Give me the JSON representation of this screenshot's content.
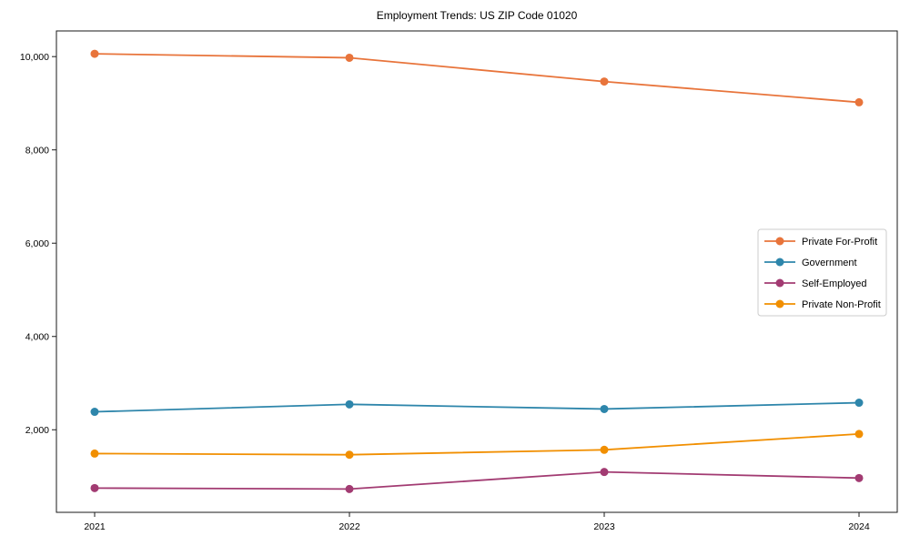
{
  "chart_data": {
    "type": "line",
    "title": "Employment Trends: US ZIP Code 01020",
    "xlabel": "",
    "ylabel": "",
    "x": [
      2021,
      2022,
      2023,
      2024
    ],
    "x_tick_labels": [
      "2021",
      "2022",
      "2023",
      "2024"
    ],
    "series": [
      {
        "name": "Private For-Profit",
        "color": "#E8743B",
        "values": [
          10060,
          9975,
          9465,
          9020
        ]
      },
      {
        "name": "Government",
        "color": "#2E86AB",
        "values": [
          2385,
          2545,
          2445,
          2580
        ]
      },
      {
        "name": "Self-Employed",
        "color": "#A23B72",
        "values": [
          750,
          730,
          1095,
          965
        ]
      },
      {
        "name": "Private Non-Profit",
        "color": "#F18F01",
        "values": [
          1490,
          1465,
          1570,
          1910
        ]
      }
    ],
    "yticks": [
      2000,
      4000,
      6000,
      8000,
      10000
    ],
    "ytick_labels": [
      "2,000",
      "4,000",
      "6,000",
      "8,000",
      "10,000"
    ],
    "xlim": [
      2020.85,
      2024.15
    ],
    "ylim": [
      230,
      10550
    ],
    "grid": false,
    "legend_position": "center-right",
    "marker": "circle",
    "background_color": "#ffffff",
    "spine_color": "#1a1a1a",
    "legend_border_color": "#cccccc"
  }
}
